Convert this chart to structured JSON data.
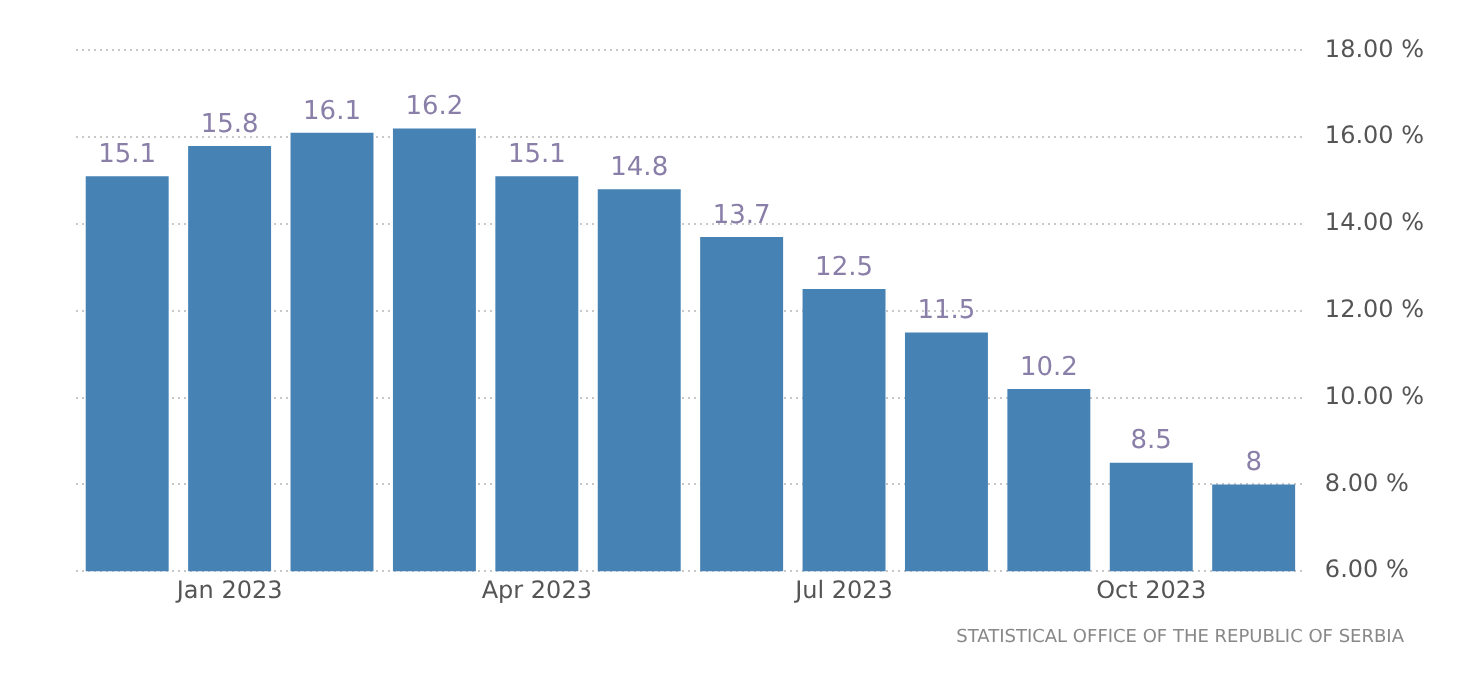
{
  "chart_data": {
    "type": "bar",
    "categories": [
      null,
      "Jan 2023",
      null,
      null,
      "Apr 2023",
      null,
      null,
      "Jul 2023",
      null,
      null,
      "Oct 2023",
      null
    ],
    "values": [
      15.1,
      15.8,
      16.1,
      16.2,
      15.1,
      14.8,
      13.7,
      12.5,
      11.5,
      10.2,
      8.5,
      8
    ],
    "color": "#4682b4",
    "ylim": [
      6,
      18
    ],
    "yticks": [
      {
        "value": 6,
        "label": "6.00 %"
      },
      {
        "value": 8,
        "label": "8.00 %"
      },
      {
        "value": 10,
        "label": "10.00 %"
      },
      {
        "value": 12,
        "label": "12.00 %"
      },
      {
        "value": 14,
        "label": "14.00 %"
      },
      {
        "value": 16,
        "label": "16.00 %"
      },
      {
        "value": 18,
        "label": "18.00 %"
      }
    ],
    "grid": "y",
    "data_labels": true,
    "annotations": [
      "STATISTICAL OFFICE OF THE REPUBLIC OF SERBIA"
    ]
  }
}
